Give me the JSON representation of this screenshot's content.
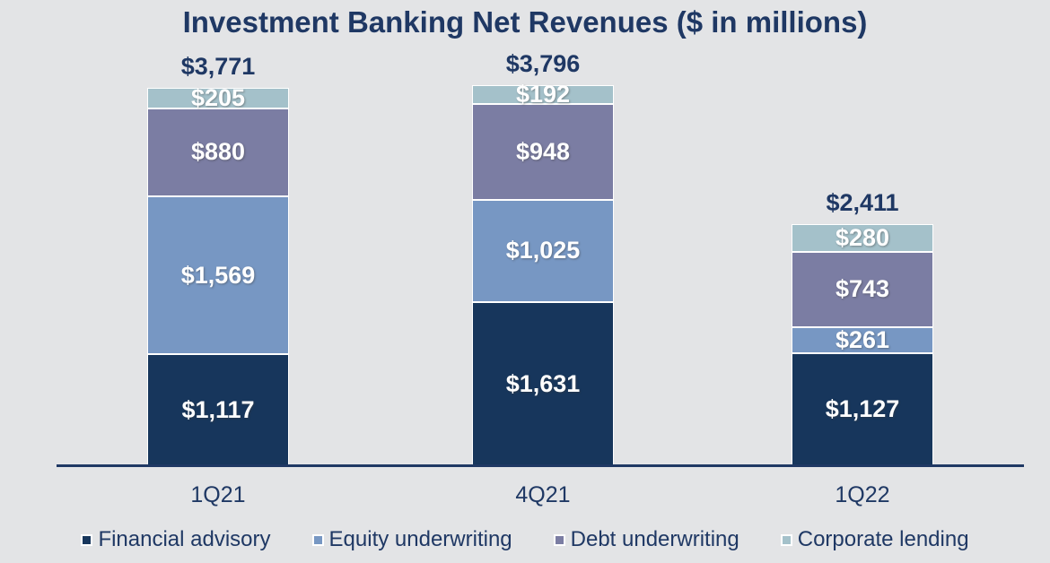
{
  "chart": {
    "title": "Investment Banking Net Revenues ($ in millions)"
  },
  "chart_data": {
    "type": "bar",
    "stacked": true,
    "title": "Investment Banking Net Revenues ($ in millions)",
    "categories": [
      "1Q21",
      "4Q21",
      "1Q22"
    ],
    "series": [
      {
        "name": "Financial advisory",
        "color": "#17365c",
        "values": [
          1117,
          1631,
          1127
        ],
        "labels": [
          "$1,117",
          "$1,631",
          "$1,127"
        ]
      },
      {
        "name": "Equity underwriting",
        "color": "#7797c3",
        "values": [
          1569,
          1025,
          261
        ],
        "labels": [
          "$1,569",
          "$1,025",
          "$261"
        ]
      },
      {
        "name": "Debt underwriting",
        "color": "#7b7da3",
        "values": [
          880,
          948,
          743
        ],
        "labels": [
          "$880",
          "$948",
          "$743"
        ]
      },
      {
        "name": "Corporate lending",
        "color": "#a4c1ca",
        "values": [
          205,
          192,
          280
        ],
        "labels": [
          "$205",
          "$192",
          "$280"
        ]
      }
    ],
    "totals": [
      3771,
      3796,
      2411
    ],
    "total_labels": [
      "$3,771",
      "$3,796",
      "$2,411"
    ],
    "xlabel": "",
    "ylabel": "",
    "ylim": [
      0,
      4000
    ],
    "grid": false,
    "legend_position": "bottom",
    "colors": {
      "background": "#e3e4e6",
      "text": "#1f3864",
      "axis_line": "#1f3864",
      "segment_label": "#ffffff"
    }
  }
}
